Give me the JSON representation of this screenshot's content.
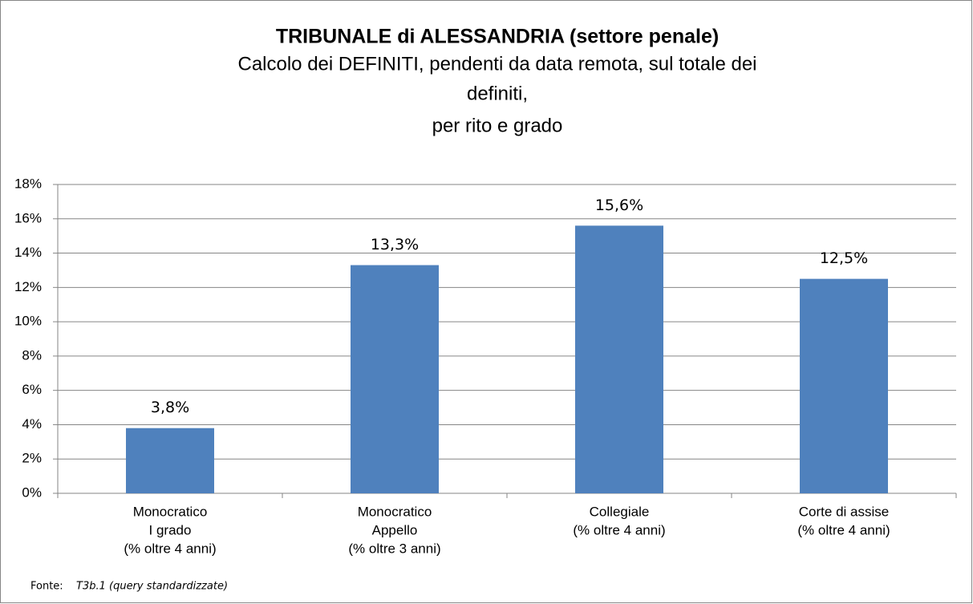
{
  "chart_data": {
    "type": "bar",
    "title": "TRIBUNALE di ALESSANDRIA (settore penale)",
    "subtitle": [
      "Calcolo dei DEFINITI, pendenti da data remota, sul totale dei",
      "definiti,",
      "per rito e grado"
    ],
    "categories": [
      [
        "Monocratico",
        "I grado",
        "(% oltre 4 anni)"
      ],
      [
        "Monocratico",
        "Appello",
        "(% oltre 3 anni)"
      ],
      [
        "Collegiale",
        "(% oltre 4 anni)"
      ],
      [
        "Corte di assise",
        "(% oltre 4 anni)"
      ]
    ],
    "values": [
      3.8,
      13.3,
      15.6,
      12.5
    ],
    "value_labels": [
      "3,8%",
      "13,3%",
      "15,6%",
      "12,5%"
    ],
    "color": "#4f81bd",
    "ylim": [
      0,
      18
    ],
    "yticks": [
      {
        "value": 0,
        "label": "0%"
      },
      {
        "value": 2,
        "label": "2%"
      },
      {
        "value": 4,
        "label": "4%"
      },
      {
        "value": 6,
        "label": "6%"
      },
      {
        "value": 8,
        "label": "8%"
      },
      {
        "value": 10,
        "label": "10%"
      },
      {
        "value": 12,
        "label": "12%"
      },
      {
        "value": 14,
        "label": "14%"
      },
      {
        "value": 16,
        "label": "16%"
      },
      {
        "value": 18,
        "label": "18%"
      }
    ],
    "grid": true,
    "source_label": "Fonte:",
    "source": "T3b.1 (query standardizzate)"
  }
}
